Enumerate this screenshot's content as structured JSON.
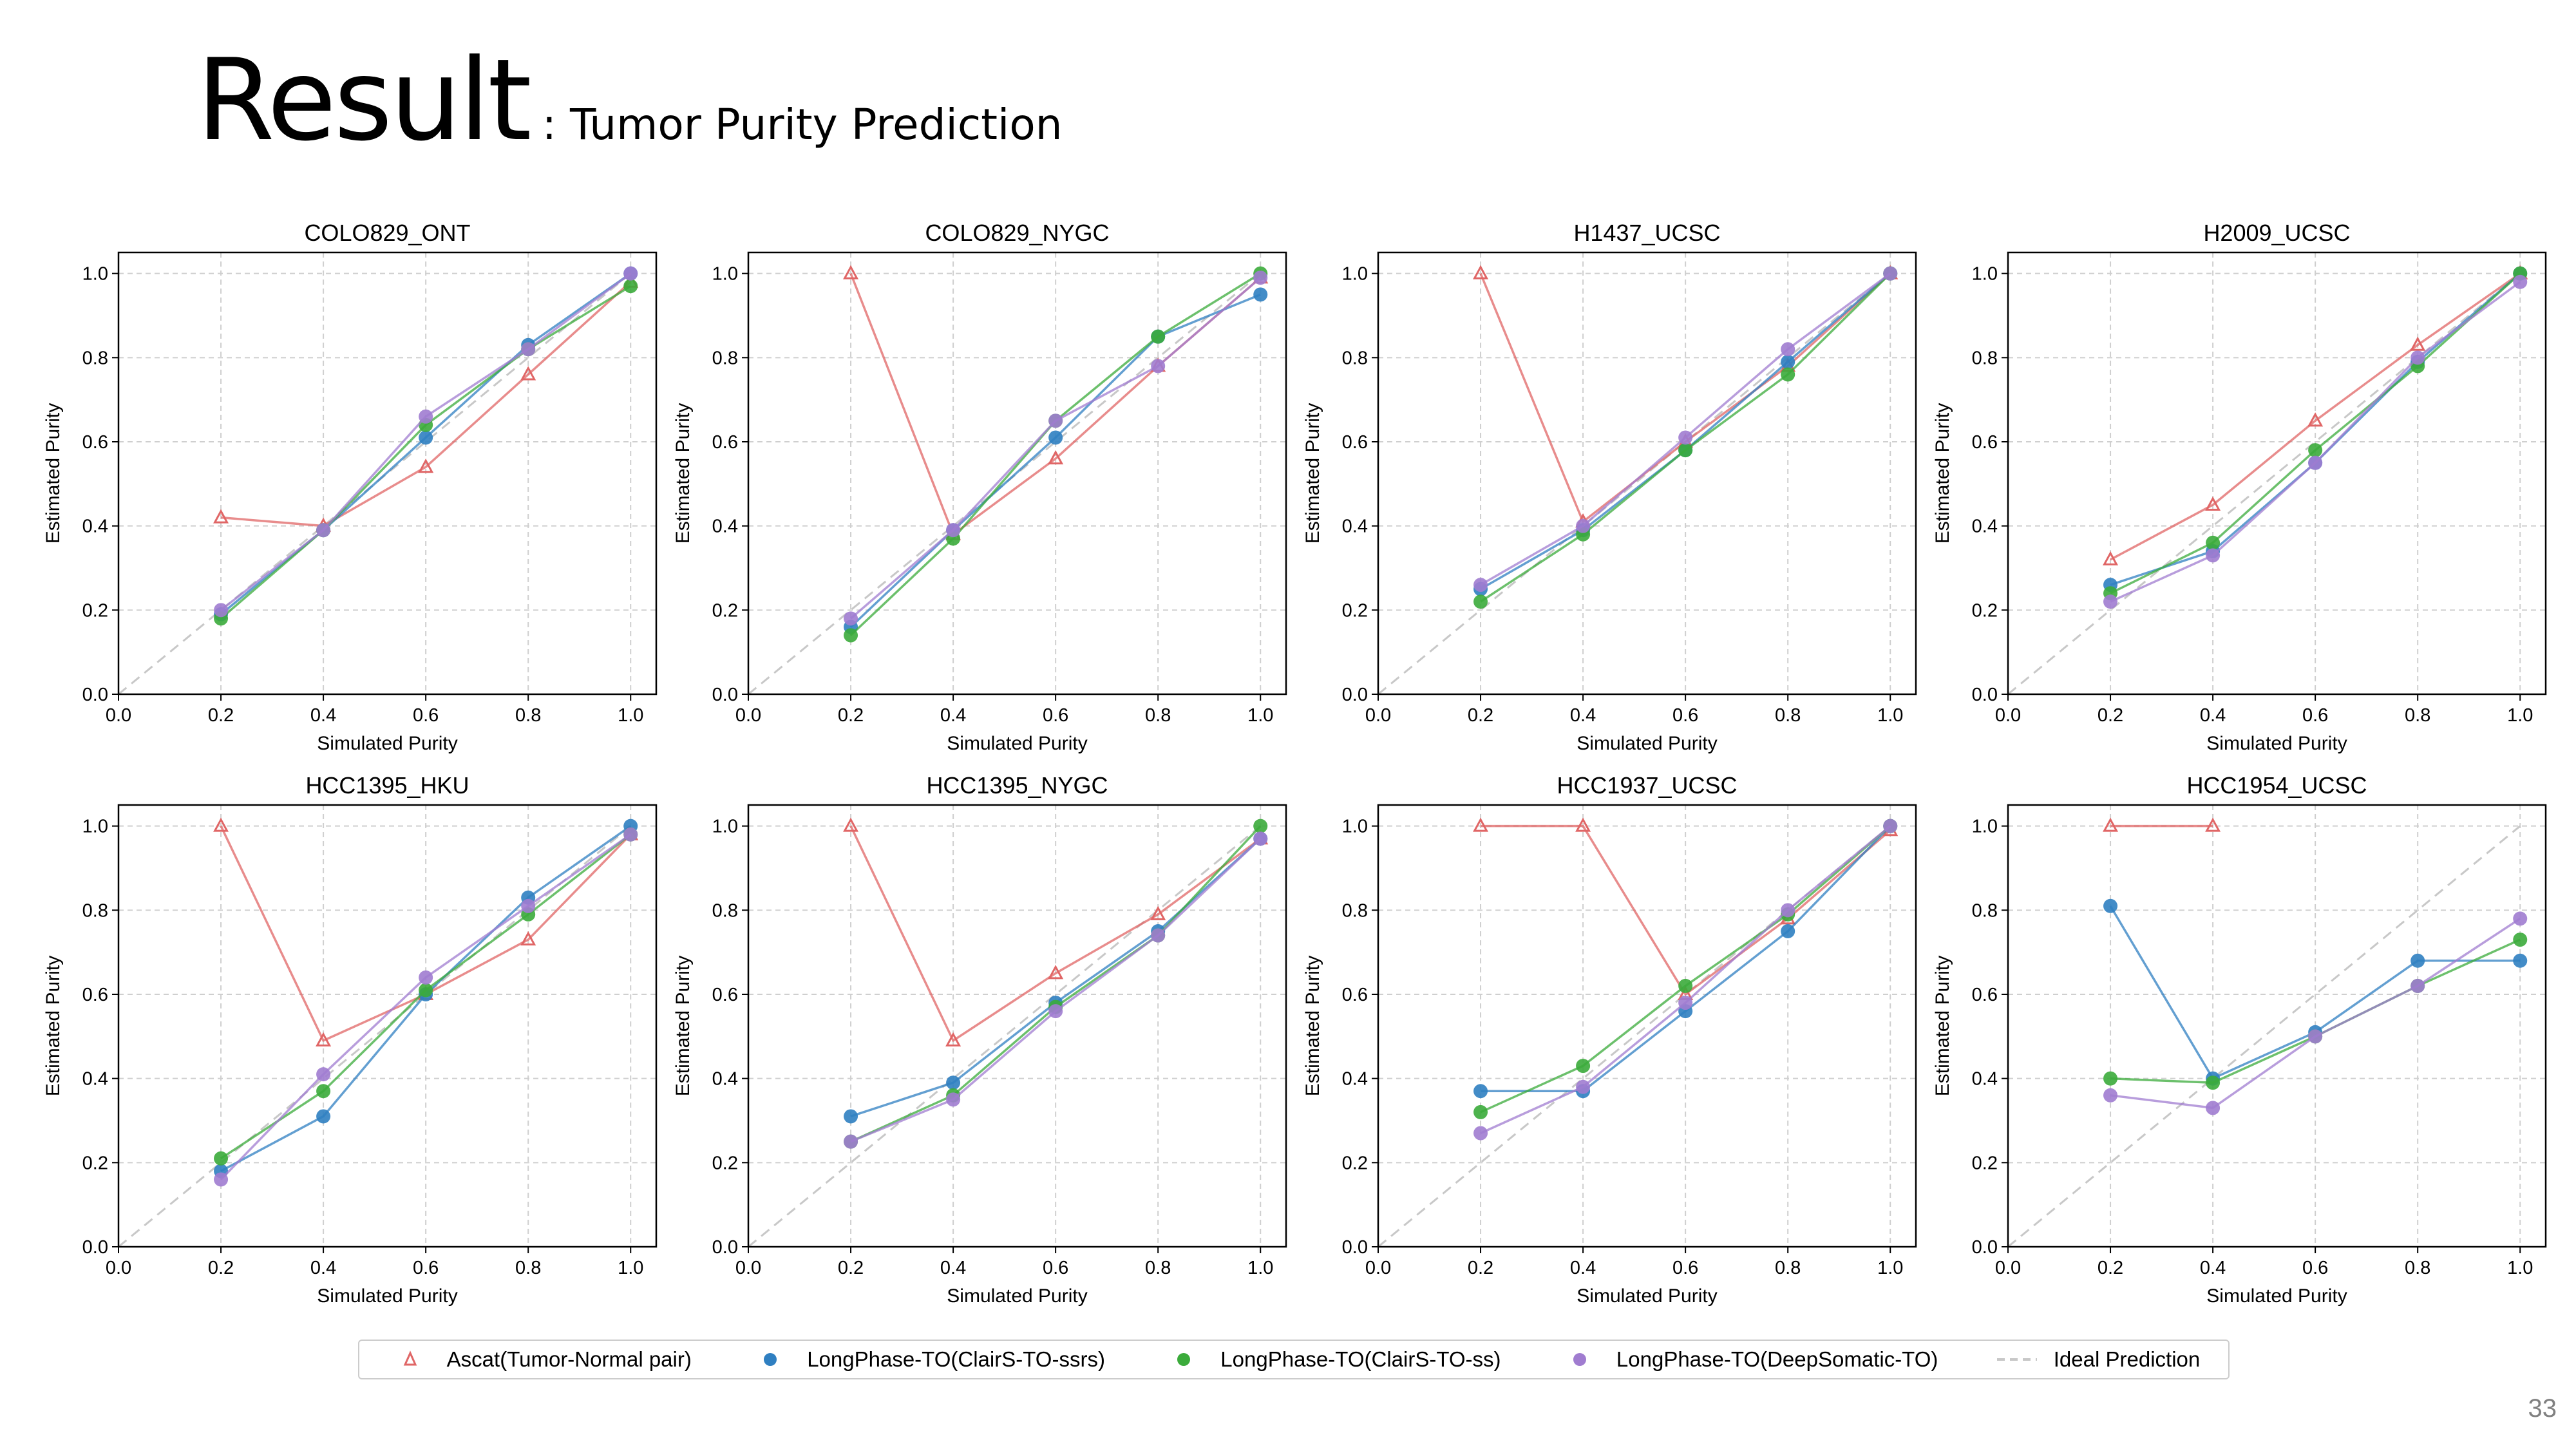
{
  "slide": {
    "title": "Result",
    "subtitle": ": Tumor Purity Prediction",
    "page_number": "33"
  },
  "series_styles": [
    {
      "name": "Ascat(Tumor-Normal pair)",
      "color": "#e06666",
      "marker": "open-triangle"
    },
    {
      "name": "LongPhase-TO(ClairS-TO-ssrs)",
      "color": "#2f7fc1",
      "marker": "circle"
    },
    {
      "name": "LongPhase-TO(ClairS-TO-ss)",
      "color": "#3bab3b",
      "marker": "circle"
    },
    {
      "name": "LongPhase-TO(DeepSomatic-TO)",
      "color": "#a07cd0",
      "marker": "circle"
    },
    {
      "name": "Ideal Prediction",
      "color": "#c8c8c8",
      "marker": "dashed-line"
    }
  ],
  "chart_data": [
    {
      "type": "line",
      "title": "COLO829_ONT",
      "xlabel": "Simulated Purity",
      "ylabel": "Estimated Purity",
      "xlim": [
        0,
        1.05
      ],
      "ylim": [
        0,
        1.05
      ],
      "grid": true,
      "x": [
        0.2,
        0.4,
        0.6,
        0.8,
        1.0
      ],
      "series": [
        {
          "name": "Ascat(Tumor-Normal pair)",
          "values": [
            0.42,
            0.4,
            0.54,
            0.76,
            0.98
          ]
        },
        {
          "name": "LongPhase-TO(ClairS-TO-ssrs)",
          "values": [
            0.19,
            0.39,
            0.61,
            0.83,
            1.0
          ]
        },
        {
          "name": "LongPhase-TO(ClairS-TO-ss)",
          "values": [
            0.18,
            0.39,
            0.64,
            0.82,
            0.97
          ]
        },
        {
          "name": "LongPhase-TO(DeepSomatic-TO)",
          "values": [
            0.2,
            0.39,
            0.66,
            0.82,
            1.0
          ]
        },
        {
          "name": "Ideal Prediction",
          "values": [
            0,
            1.0
          ],
          "x": [
            0,
            1.0
          ]
        }
      ]
    },
    {
      "type": "line",
      "title": "COLO829_NYGC",
      "xlabel": "Simulated Purity",
      "ylabel": "Estimated Purity",
      "xlim": [
        0,
        1.05
      ],
      "ylim": [
        0,
        1.05
      ],
      "grid": true,
      "x": [
        0.2,
        0.4,
        0.6,
        0.8,
        1.0
      ],
      "series": [
        {
          "name": "Ascat(Tumor-Normal pair)",
          "values": [
            1.0,
            0.38,
            0.56,
            0.78,
            0.99
          ]
        },
        {
          "name": "LongPhase-TO(ClairS-TO-ssrs)",
          "values": [
            0.16,
            0.39,
            0.61,
            0.85,
            0.95
          ]
        },
        {
          "name": "LongPhase-TO(ClairS-TO-ss)",
          "values": [
            0.14,
            0.37,
            0.65,
            0.85,
            1.0
          ]
        },
        {
          "name": "LongPhase-TO(DeepSomatic-TO)",
          "values": [
            0.18,
            0.39,
            0.65,
            0.78,
            0.99
          ]
        },
        {
          "name": "Ideal Prediction",
          "values": [
            0,
            1.0
          ],
          "x": [
            0,
            1.0
          ]
        }
      ]
    },
    {
      "type": "line",
      "title": "H1437_UCSC",
      "xlabel": "Simulated Purity",
      "ylabel": "Estimated Purity",
      "xlim": [
        0,
        1.05
      ],
      "ylim": [
        0,
        1.05
      ],
      "grid": true,
      "x": [
        0.2,
        0.4,
        0.6,
        0.8,
        1.0
      ],
      "series": [
        {
          "name": "Ascat(Tumor-Normal pair)",
          "values": [
            1.0,
            0.41,
            0.6,
            0.78,
            1.0
          ]
        },
        {
          "name": "LongPhase-TO(ClairS-TO-ssrs)",
          "values": [
            0.25,
            0.39,
            0.58,
            0.79,
            1.0
          ]
        },
        {
          "name": "LongPhase-TO(ClairS-TO-ss)",
          "values": [
            0.22,
            0.38,
            0.58,
            0.76,
            1.0
          ]
        },
        {
          "name": "LongPhase-TO(DeepSomatic-TO)",
          "values": [
            0.26,
            0.4,
            0.61,
            0.82,
            1.0
          ]
        },
        {
          "name": "Ideal Prediction",
          "values": [
            0,
            1.0
          ],
          "x": [
            0,
            1.0
          ]
        }
      ]
    },
    {
      "type": "line",
      "title": "H2009_UCSC",
      "xlabel": "Simulated Purity",
      "ylabel": "Estimated Purity",
      "xlim": [
        0,
        1.05
      ],
      "ylim": [
        0,
        1.05
      ],
      "grid": true,
      "x": [
        0.2,
        0.4,
        0.6,
        0.8,
        1.0
      ],
      "series": [
        {
          "name": "Ascat(Tumor-Normal pair)",
          "values": [
            0.32,
            0.45,
            0.65,
            0.83,
            1.0
          ]
        },
        {
          "name": "LongPhase-TO(ClairS-TO-ssrs)",
          "values": [
            0.26,
            0.34,
            0.55,
            0.79,
            1.0
          ]
        },
        {
          "name": "LongPhase-TO(ClairS-TO-ss)",
          "values": [
            0.24,
            0.36,
            0.58,
            0.78,
            1.0
          ]
        },
        {
          "name": "LongPhase-TO(DeepSomatic-TO)",
          "values": [
            0.22,
            0.33,
            0.55,
            0.8,
            0.98
          ]
        },
        {
          "name": "Ideal Prediction",
          "values": [
            0,
            1.0
          ],
          "x": [
            0,
            1.0
          ]
        }
      ]
    },
    {
      "type": "line",
      "title": "HCC1395_HKU",
      "xlabel": "Simulated Purity",
      "ylabel": "Estimated Purity",
      "xlim": [
        0,
        1.05
      ],
      "ylim": [
        0,
        1.05
      ],
      "grid": true,
      "x": [
        0.2,
        0.4,
        0.6,
        0.8,
        1.0
      ],
      "series": [
        {
          "name": "Ascat(Tumor-Normal pair)",
          "values": [
            1.0,
            0.49,
            0.6,
            0.73,
            0.98
          ]
        },
        {
          "name": "LongPhase-TO(ClairS-TO-ssrs)",
          "values": [
            0.18,
            0.31,
            0.6,
            0.83,
            1.0
          ]
        },
        {
          "name": "LongPhase-TO(ClairS-TO-ss)",
          "values": [
            0.21,
            0.37,
            0.61,
            0.79,
            0.98
          ]
        },
        {
          "name": "LongPhase-TO(DeepSomatic-TO)",
          "values": [
            0.16,
            0.41,
            0.64,
            0.81,
            0.98
          ]
        },
        {
          "name": "Ideal Prediction",
          "values": [
            0,
            1.0
          ],
          "x": [
            0,
            1.0
          ]
        }
      ]
    },
    {
      "type": "line",
      "title": "HCC1395_NYGC",
      "xlabel": "Simulated Purity",
      "ylabel": "Estimated Purity",
      "xlim": [
        0,
        1.05
      ],
      "ylim": [
        0,
        1.05
      ],
      "grid": true,
      "x": [
        0.2,
        0.4,
        0.6,
        0.8,
        1.0
      ],
      "series": [
        {
          "name": "Ascat(Tumor-Normal pair)",
          "values": [
            1.0,
            0.49,
            0.65,
            0.79,
            0.97
          ]
        },
        {
          "name": "LongPhase-TO(ClairS-TO-ssrs)",
          "values": [
            0.31,
            0.39,
            0.58,
            0.75,
            0.97
          ]
        },
        {
          "name": "LongPhase-TO(ClairS-TO-ss)",
          "values": [
            0.25,
            0.36,
            0.57,
            0.74,
            1.0
          ]
        },
        {
          "name": "LongPhase-TO(DeepSomatic-TO)",
          "values": [
            0.25,
            0.35,
            0.56,
            0.74,
            0.97
          ]
        },
        {
          "name": "Ideal Prediction",
          "values": [
            0,
            1.0
          ],
          "x": [
            0,
            1.0
          ]
        }
      ]
    },
    {
      "type": "line",
      "title": "HCC1937_UCSC",
      "xlabel": "Simulated Purity",
      "ylabel": "Estimated Purity",
      "xlim": [
        0,
        1.05
      ],
      "ylim": [
        0,
        1.05
      ],
      "grid": true,
      "x": [
        0.2,
        0.4,
        0.6,
        0.8,
        1.0
      ],
      "series": [
        {
          "name": "Ascat(Tumor-Normal pair)",
          "values": [
            1.0,
            1.0,
            0.6,
            0.78,
            0.99
          ]
        },
        {
          "name": "LongPhase-TO(ClairS-TO-ssrs)",
          "values": [
            0.37,
            0.37,
            0.56,
            0.75,
            1.0
          ]
        },
        {
          "name": "LongPhase-TO(ClairS-TO-ss)",
          "values": [
            0.32,
            0.43,
            0.62,
            0.79,
            1.0
          ]
        },
        {
          "name": "LongPhase-TO(DeepSomatic-TO)",
          "values": [
            0.27,
            0.38,
            0.58,
            0.8,
            1.0
          ]
        },
        {
          "name": "Ideal Prediction",
          "values": [
            0,
            1.0
          ],
          "x": [
            0,
            1.0
          ]
        }
      ]
    },
    {
      "type": "line",
      "title": "HCC1954_UCSC",
      "xlabel": "Simulated Purity",
      "ylabel": "Estimated Purity",
      "xlim": [
        0,
        1.05
      ],
      "ylim": [
        0,
        1.05
      ],
      "grid": true,
      "x": [
        0.2,
        0.4,
        0.6,
        0.8,
        1.0
      ],
      "series": [
        {
          "name": "Ascat(Tumor-Normal pair)",
          "values": [
            1.0,
            1.0,
            null,
            null,
            null
          ]
        },
        {
          "name": "LongPhase-TO(ClairS-TO-ssrs)",
          "values": [
            0.81,
            0.4,
            0.51,
            0.68,
            0.68
          ]
        },
        {
          "name": "LongPhase-TO(ClairS-TO-ss)",
          "values": [
            0.4,
            0.39,
            0.5,
            0.62,
            0.73
          ]
        },
        {
          "name": "LongPhase-TO(DeepSomatic-TO)",
          "values": [
            0.36,
            0.33,
            0.5,
            0.62,
            0.78
          ]
        },
        {
          "name": "Ideal Prediction",
          "values": [
            0,
            1.0
          ],
          "x": [
            0,
            1.0
          ]
        }
      ]
    }
  ],
  "axis_ticks": [
    "0.0",
    "0.2",
    "0.4",
    "0.6",
    "0.8",
    "1.0"
  ]
}
